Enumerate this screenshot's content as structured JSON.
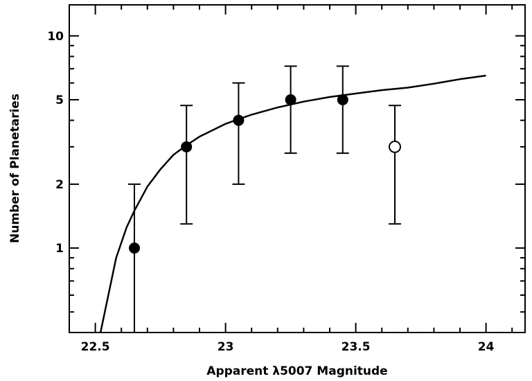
{
  "chart_data": {
    "type": "scatter",
    "title": "",
    "xlabel": "Apparent λ5007 Magnitude",
    "ylabel": "Number of Planetaries",
    "xlim": [
      22.4,
      24.15
    ],
    "ylim": [
      0.4,
      14
    ],
    "yscale": "log",
    "grid": false,
    "x_ticks": [
      {
        "value": 22.5,
        "label": "22.5"
      },
      {
        "value": 23,
        "label": "23"
      },
      {
        "value": 23.5,
        "label": "23.5"
      },
      {
        "value": 24,
        "label": "24"
      }
    ],
    "y_ticks": [
      {
        "value": 1,
        "label": "1"
      },
      {
        "value": 2,
        "label": "2"
      },
      {
        "value": 5,
        "label": "5"
      },
      {
        "value": 10,
        "label": "10"
      }
    ],
    "points": [
      {
        "x": 22.65,
        "y": 1,
        "yerr_low": 0.4,
        "yerr_high": 2,
        "filled": true
      },
      {
        "x": 22.85,
        "y": 3,
        "yerr_low": 1.3,
        "yerr_high": 4.7,
        "filled": true
      },
      {
        "x": 23.05,
        "y": 4,
        "yerr_low": 2,
        "yerr_high": 6,
        "filled": true
      },
      {
        "x": 23.25,
        "y": 5,
        "yerr_low": 2.8,
        "yerr_high": 7.2,
        "filled": true
      },
      {
        "x": 23.45,
        "y": 5,
        "yerr_low": 2.8,
        "yerr_high": 7.2,
        "filled": true
      },
      {
        "x": 23.65,
        "y": 3,
        "yerr_low": 1.3,
        "yerr_high": 4.7,
        "filled": false
      }
    ],
    "curve": {
      "x": [
        22.52,
        22.55,
        22.58,
        22.62,
        22.65,
        22.7,
        22.75,
        22.8,
        22.85,
        22.9,
        23.0,
        23.05,
        23.1,
        23.2,
        23.3,
        23.4,
        23.5,
        23.6,
        23.7,
        23.8,
        23.9,
        24.0
      ],
      "y": [
        0.38,
        0.6,
        0.9,
        1.25,
        1.5,
        1.95,
        2.35,
        2.75,
        3.05,
        3.35,
        3.85,
        4.05,
        4.25,
        4.6,
        4.9,
        5.15,
        5.35,
        5.55,
        5.7,
        5.95,
        6.25,
        6.5
      ]
    }
  }
}
